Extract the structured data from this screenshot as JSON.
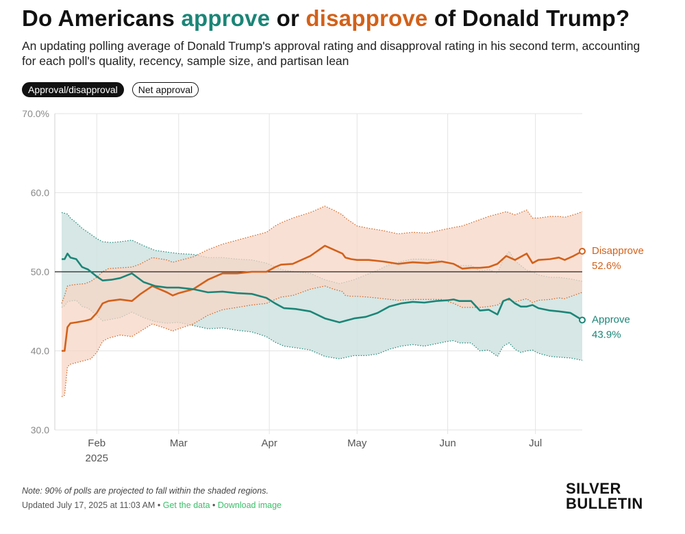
{
  "header": {
    "title_pre": "Do Americans ",
    "title_approve": "approve",
    "title_mid": " or ",
    "title_disapprove": "disapprove",
    "title_post": " of Donald Trump?",
    "subtitle": "An updating polling average of Donald Trump's approval rating and disapproval rating in his second term, accounting for each poll's quality, recency, sample size, and partisan lean"
  },
  "toggles": {
    "approval_disapproval": "Approval/disapproval",
    "net_approval": "Net approval"
  },
  "colors": {
    "approve": "#1b8577",
    "disapprove": "#d2611a",
    "approve_band": "#cfe3e0",
    "disapprove_band": "#f7d5c5",
    "grid": "#e3e3e3",
    "reference": "#222222"
  },
  "chart_data": {
    "type": "line",
    "title": "Do Americans approve or disapprove of Donald Trump?",
    "xlabel": "",
    "ylabel": "",
    "x_unit": "days since Jan 20, 2025",
    "x_range": [
      0,
      178
    ],
    "ylim": [
      30,
      70
    ],
    "reference_line": 50,
    "y_ticks": [
      {
        "value": 30,
        "label": "30.0"
      },
      {
        "value": 40,
        "label": "40.0"
      },
      {
        "value": 50,
        "label": "50.0"
      },
      {
        "value": 60,
        "label": "60.0"
      },
      {
        "value": 70,
        "label": "70.0%"
      }
    ],
    "x_ticks": [
      {
        "day": 12,
        "label": "Feb",
        "sublabel": "2025"
      },
      {
        "day": 40,
        "label": "Mar",
        "sublabel": ""
      },
      {
        "day": 71,
        "label": "Apr",
        "sublabel": ""
      },
      {
        "day": 101,
        "label": "May",
        "sublabel": ""
      },
      {
        "day": 132,
        "label": "Jun",
        "sublabel": ""
      },
      {
        "day": 162,
        "label": "Jul",
        "sublabel": ""
      }
    ],
    "series": [
      {
        "name": "Disapprove",
        "final_value": 52.6,
        "final_label": "52.6%",
        "x": [
          0,
          1,
          2,
          3,
          5,
          8,
          10,
          12,
          14,
          16,
          20,
          24,
          27,
          31,
          36,
          38,
          40,
          45,
          50,
          55,
          60,
          65,
          70,
          73,
          75,
          79,
          85,
          90,
          93,
          96,
          97,
          99,
          101,
          105,
          110,
          115,
          120,
          125,
          130,
          134,
          137,
          140,
          143,
          146,
          149,
          152,
          155,
          159,
          161,
          163,
          167,
          170,
          172,
          175,
          178
        ],
        "values": [
          40.0,
          40.0,
          43.0,
          43.5,
          43.6,
          43.8,
          44.0,
          44.8,
          46.0,
          46.3,
          46.5,
          46.3,
          47.2,
          48.2,
          47.4,
          47.0,
          47.3,
          47.8,
          49.0,
          49.8,
          49.8,
          50.0,
          50.0,
          50.6,
          50.9,
          51.0,
          52.0,
          53.3,
          52.8,
          52.3,
          51.8,
          51.6,
          51.5,
          51.5,
          51.3,
          51.0,
          51.2,
          51.1,
          51.3,
          51.0,
          50.4,
          50.5,
          50.5,
          50.6,
          51.0,
          52.0,
          51.5,
          52.3,
          51.1,
          51.5,
          51.6,
          51.8,
          51.5,
          52.0,
          52.6
        ],
        "upper": [
          46.0,
          47.0,
          48.2,
          48.3,
          48.4,
          48.5,
          48.8,
          49.3,
          50.0,
          50.4,
          50.5,
          50.6,
          51.0,
          51.8,
          51.5,
          51.2,
          51.4,
          51.9,
          52.8,
          53.5,
          54.0,
          54.5,
          55.0,
          55.8,
          56.2,
          56.8,
          57.5,
          58.3,
          57.8,
          57.2,
          56.8,
          56.3,
          55.8,
          55.5,
          55.2,
          54.8,
          55.0,
          54.9,
          55.3,
          55.6,
          55.8,
          56.2,
          56.6,
          57.0,
          57.3,
          57.6,
          57.2,
          57.8,
          56.8,
          56.8,
          57.0,
          57.0,
          56.9,
          57.2,
          57.6
        ],
        "lower": [
          34.2,
          34.4,
          38.0,
          38.3,
          38.5,
          38.8,
          39.0,
          39.8,
          41.2,
          41.6,
          42.0,
          41.8,
          42.5,
          43.4,
          42.8,
          42.5,
          42.8,
          43.4,
          44.5,
          45.2,
          45.5,
          45.8,
          46.0,
          46.5,
          46.8,
          47.0,
          47.8,
          48.2,
          47.8,
          47.5,
          47.0,
          46.9,
          46.9,
          46.8,
          46.6,
          46.4,
          46.5,
          46.5,
          46.5,
          46.0,
          45.5,
          45.5,
          45.5,
          45.6,
          45.8,
          46.5,
          46.2,
          46.6,
          46.1,
          46.4,
          46.5,
          46.7,
          46.6,
          47.0,
          47.4
        ]
      },
      {
        "name": "Approve",
        "final_value": 43.9,
        "final_label": "43.9%",
        "x": [
          0,
          1,
          2,
          3,
          5,
          7,
          9,
          12,
          14,
          17,
          20,
          24,
          28,
          32,
          36,
          40,
          45,
          50,
          55,
          60,
          65,
          70,
          73,
          76,
          80,
          85,
          90,
          95,
          100,
          104,
          108,
          112,
          116,
          120,
          124,
          128,
          132,
          134,
          136,
          140,
          143,
          146,
          149,
          151,
          153,
          155,
          157,
          159,
          161,
          163,
          167,
          170,
          174,
          178
        ],
        "values": [
          51.6,
          51.6,
          52.3,
          51.8,
          51.6,
          50.6,
          50.3,
          49.4,
          48.9,
          49.0,
          49.2,
          49.8,
          48.7,
          48.2,
          48.0,
          48.0,
          47.8,
          47.4,
          47.5,
          47.3,
          47.2,
          46.7,
          46.0,
          45.4,
          45.3,
          45.0,
          44.1,
          43.6,
          44.1,
          44.3,
          44.8,
          45.6,
          46.0,
          46.2,
          46.1,
          46.3,
          46.4,
          46.5,
          46.3,
          46.3,
          45.1,
          45.2,
          44.6,
          46.3,
          46.6,
          46.0,
          45.6,
          45.6,
          45.8,
          45.4,
          45.1,
          45.0,
          44.8,
          43.9
        ],
        "upper": [
          57.5,
          57.4,
          57.3,
          56.8,
          56.2,
          55.5,
          55.0,
          54.2,
          53.8,
          53.7,
          53.8,
          54.0,
          53.3,
          52.7,
          52.5,
          52.3,
          52.2,
          51.8,
          51.8,
          51.6,
          51.5,
          51.1,
          50.6,
          50.2,
          50.0,
          49.8,
          49.0,
          48.5,
          49.0,
          49.6,
          50.2,
          50.9,
          51.3,
          51.6,
          51.6,
          51.5,
          51.2,
          51.0,
          50.8,
          50.8,
          50.1,
          50.3,
          49.8,
          51.6,
          52.6,
          51.4,
          50.8,
          50.2,
          50.0,
          49.6,
          49.3,
          49.3,
          49.1,
          48.8
        ],
        "lower": [
          45.5,
          45.7,
          46.2,
          46.3,
          46.4,
          45.6,
          45.4,
          44.5,
          43.8,
          44.0,
          44.2,
          44.9,
          44.2,
          43.7,
          43.5,
          43.6,
          43.2,
          42.8,
          42.9,
          42.6,
          42.4,
          41.8,
          41.1,
          40.6,
          40.4,
          40.1,
          39.3,
          39.0,
          39.4,
          39.4,
          39.6,
          40.2,
          40.6,
          40.8,
          40.6,
          40.9,
          41.2,
          41.3,
          41.0,
          41.0,
          40.0,
          40.1,
          39.3,
          40.6,
          41.0,
          40.2,
          39.8,
          40.0,
          40.1,
          39.7,
          39.3,
          39.2,
          39.1,
          38.8
        ]
      }
    ]
  },
  "footer": {
    "note": "Note: 90% of polls are projected to fall within the shaded regions.",
    "updated": "Updated July 17, 2025 at 11:03 AM",
    "separator": "•",
    "get_data": "Get the data",
    "download_image": "Download image",
    "logo_line1": "SILVER",
    "logo_line2": "BULLETIN"
  }
}
